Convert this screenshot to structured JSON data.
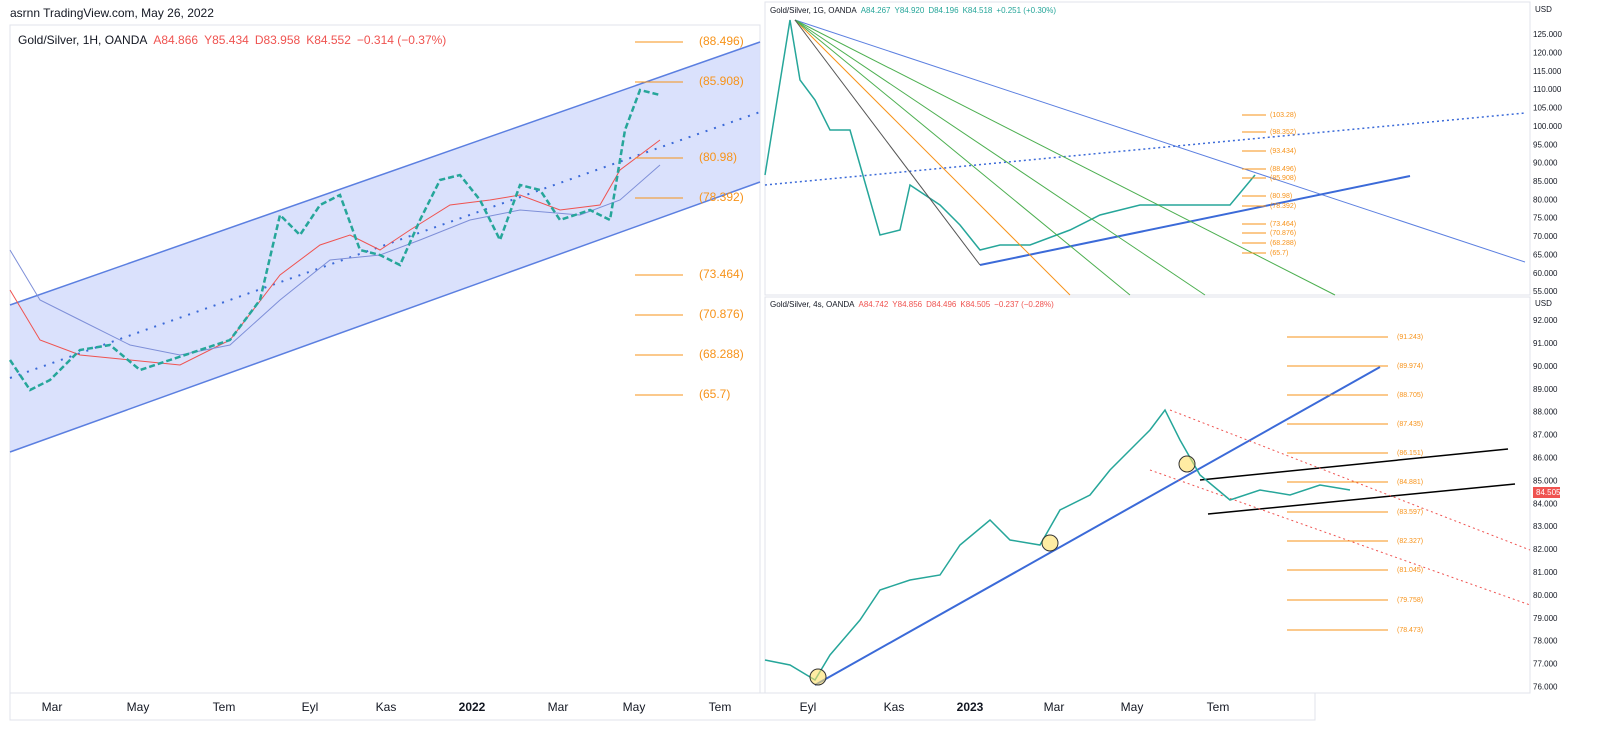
{
  "header": {
    "title": "asrnn TradingView.com, May 26, 2022"
  },
  "left_chart": {
    "legend": [
      "Gold/Silver, 1H, OANDA",
      "A84.866",
      "Y85.434",
      "D83.958",
      "K84.552",
      "−0.314 (−0.37%)"
    ],
    "fib_levels": [
      "(88.496)",
      "(85.908)",
      "(80.98)",
      "(78.392)",
      "(73.464)",
      "(70.876)",
      "(68.288)",
      "(65.7)"
    ]
  },
  "top_right_chart": {
    "legend": [
      "Gold/Silver, 1G, OANDA",
      "A84.267",
      "Y84.920",
      "D84.196",
      "K84.518",
      "+0.251 (+0.30%)"
    ],
    "currency": "USD",
    "price_ticks": [
      "125.000",
      "120.000",
      "115.000",
      "110.000",
      "105.000",
      "100.000",
      "95.000",
      "90.000",
      "85.000",
      "80.000",
      "75.000",
      "70.000",
      "65.000",
      "60.000",
      "55.000"
    ],
    "fib_levels": [
      "(103.28)",
      "(98.352)",
      "(93.434)",
      "(88.496)",
      "(85.908)",
      "(80.98)",
      "(78.392)",
      "(73.464)",
      "(70.876)",
      "(68.288)",
      "(65.7)"
    ]
  },
  "bottom_right_chart": {
    "legend": [
      "Gold/Silver, 4s, OANDA",
      "A84.742",
      "Y84.856",
      "D84.496",
      "K84.505",
      "−0.237 (−0.28%)"
    ],
    "currency": "USD",
    "price_ticks": [
      "92.000",
      "91.000",
      "90.000",
      "89.000",
      "88.000",
      "87.000",
      "86.000",
      "85.000",
      "84.000",
      "83.000",
      "82.000",
      "81.000",
      "80.000",
      "79.000",
      "78.000",
      "77.000",
      "76.000"
    ],
    "last_price": "84.505",
    "fib_levels": [
      "(91.243)",
      "(89.974)",
      "(88.705)",
      "(87.435)",
      "(86.151)",
      "(84.881)",
      "(83.597)",
      "(82.327)",
      "(81.045)",
      "(79.758)",
      "(78.473)"
    ]
  },
  "time_axis": {
    "labels": [
      "Mar",
      "May",
      "Tem",
      "Eyl",
      "Kas",
      "2022",
      "Mar",
      "May",
      "Tem",
      "Eyl",
      "Kas",
      "2023",
      "Mar",
      "May",
      "Tem"
    ]
  }
}
